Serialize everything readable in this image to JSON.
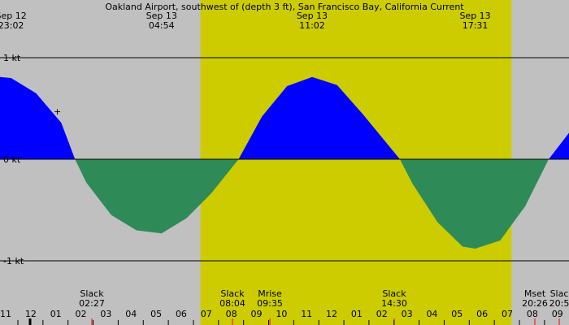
{
  "chart_data": {
    "type": "area",
    "title": "Oakland Airport, southwest of (depth 3 ft), San Francisco Bay, California Current",
    "x_axis": {
      "unit": "hour",
      "start_hour": 10.56,
      "end_hour": 33.24
    },
    "y_axis": {
      "unit": "kt",
      "ylim": [
        -1.6,
        1.6
      ],
      "tick_labels": [
        "1 kt",
        "0 kt",
        "-1 kt"
      ],
      "tick_values": [
        1,
        0,
        -1
      ]
    },
    "grid": true,
    "colors": {
      "background": "#c0c0c0",
      "daylight": "#cccc00",
      "flood": "#0000ff",
      "ebb": "#2e8b57",
      "event_tick": "#ff0000"
    },
    "daylight_period": {
      "start_hour": 18.55,
      "end_hour": 30.95
    },
    "peaks": [
      {
        "hour": 11.0,
        "value": 0.8,
        "date": "Sep 12",
        "time": "23:02"
      },
      {
        "hour": 17.0,
        "value": -0.73,
        "date": "Sep 13",
        "time": "04:54"
      },
      {
        "hour": 23.0,
        "value": 0.8,
        "date": "Sep 13",
        "time": "11:02"
      },
      {
        "hour": 29.5,
        "value": -0.88,
        "date": "Sep 13",
        "time": "17:31"
      }
    ],
    "series": [
      {
        "points": [
          [
            10.56,
            0.81
          ],
          [
            11.0,
            0.8
          ],
          [
            12.0,
            0.65
          ],
          [
            13.0,
            0.36
          ],
          [
            13.55,
            0.0
          ],
          [
            14.0,
            -0.23
          ],
          [
            15.0,
            -0.55
          ],
          [
            16.0,
            -0.7
          ],
          [
            17.0,
            -0.73
          ],
          [
            18.0,
            -0.58
          ],
          [
            19.0,
            -0.33
          ],
          [
            20.07,
            0.0
          ],
          [
            21.0,
            0.42
          ],
          [
            22.0,
            0.72
          ],
          [
            23.0,
            0.81
          ],
          [
            24.0,
            0.73
          ],
          [
            25.0,
            0.45
          ],
          [
            26.5,
            0.0
          ],
          [
            27.0,
            -0.24
          ],
          [
            28.0,
            -0.62
          ],
          [
            29.0,
            -0.86
          ],
          [
            29.5,
            -0.88
          ],
          [
            30.5,
            -0.8
          ],
          [
            31.5,
            -0.46
          ],
          [
            32.43,
            0.0
          ],
          [
            33.24,
            0.26
          ]
        ]
      }
    ],
    "events": [
      {
        "label": "Slack",
        "time": "02:27",
        "hour": 26.45
      },
      {
        "label": "Slack",
        "time": "08:04",
        "hour": 32.07
      },
      {
        "label": "Mrise",
        "time": "09:35",
        "hour": 33.58
      },
      {
        "label": "Slack",
        "time": "14:30",
        "hour": 38.5
      },
      {
        "label": "Mset",
        "time": "20:26",
        "hour": 44.43
      },
      {
        "label": "Slac",
        "time": "20:5",
        "hour": 44.9
      }
    ],
    "hour_ticks": [
      "11",
      "12",
      "01",
      "02",
      "03",
      "04",
      "05",
      "06",
      "07",
      "08",
      "09",
      "10",
      "11",
      "12",
      "01",
      "02",
      "03",
      "04",
      "05",
      "06",
      "07",
      "08",
      "09"
    ]
  }
}
